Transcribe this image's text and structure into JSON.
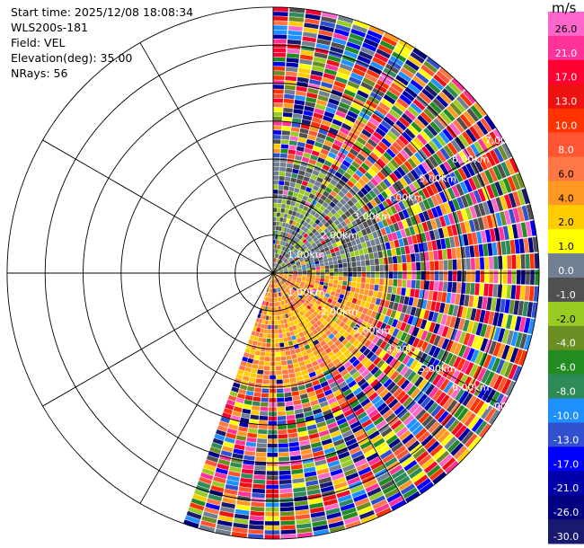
{
  "header": {
    "start_time": "Start time: 2025/12/08 18:08:34",
    "instrument": "WLS200s-181",
    "field": "Field: VEL",
    "elevation": "Elevation(deg): 35.00",
    "nrays": "NRays: 56"
  },
  "chart_data": {
    "type": "heatmap",
    "projection": "polar-ppi",
    "field": "VEL",
    "units": "m/s",
    "elevation_deg": 35.0,
    "n_rays": 56,
    "azimuth_range_deg": [
      0,
      200
    ],
    "range_rings_km": [
      1,
      2,
      3,
      4,
      5,
      6,
      7
    ],
    "range_ring_labels": [
      "1.00km",
      "2.00km",
      "3.00km",
      "4.00km",
      "5.00km",
      "6.00km",
      "7.00km"
    ],
    "spokes_deg": [
      0,
      30,
      60,
      90,
      120,
      150,
      180,
      210,
      240,
      270,
      300,
      330
    ],
    "grid": true,
    "colorbar": {
      "unit_label": "m/s",
      "placement": "right",
      "ticks": [
        "26.0",
        "21.0",
        "17.0",
        "13.0",
        "10.0",
        "8.0",
        "6.0",
        "4.0",
        "2.0",
        "1.0",
        "0.0",
        "-1.0",
        "-2.0",
        "-4.0",
        "-6.0",
        "-8.0",
        "-10.0",
        "-13.0",
        "-17.0",
        "-21.0",
        "-26.0",
        "-30.0"
      ],
      "colors": [
        "#ff66cc",
        "#ff3399",
        "#ff0033",
        "#ee1111",
        "#ff3300",
        "#ff5533",
        "#ff7744",
        "#ff9922",
        "#ffcc00",
        "#ffff00",
        "#708090",
        "#505050",
        "#98cc22",
        "#6b8e23",
        "#228b22",
        "#2e8b57",
        "#1e90ff",
        "#3050d0",
        "#0000ff",
        "#0000aa",
        "#000080",
        "#191970"
      ]
    },
    "near_field": {
      "max_range_km": 3.0,
      "approaching_sector_deg": [
        0,
        60
      ],
      "receding_sector_deg": [
        90,
        160
      ],
      "approaching_values": [
        -1.0,
        0.0,
        -2.0,
        0.0
      ],
      "receding_values": [
        4.0,
        6.0,
        2.0
      ]
    }
  }
}
